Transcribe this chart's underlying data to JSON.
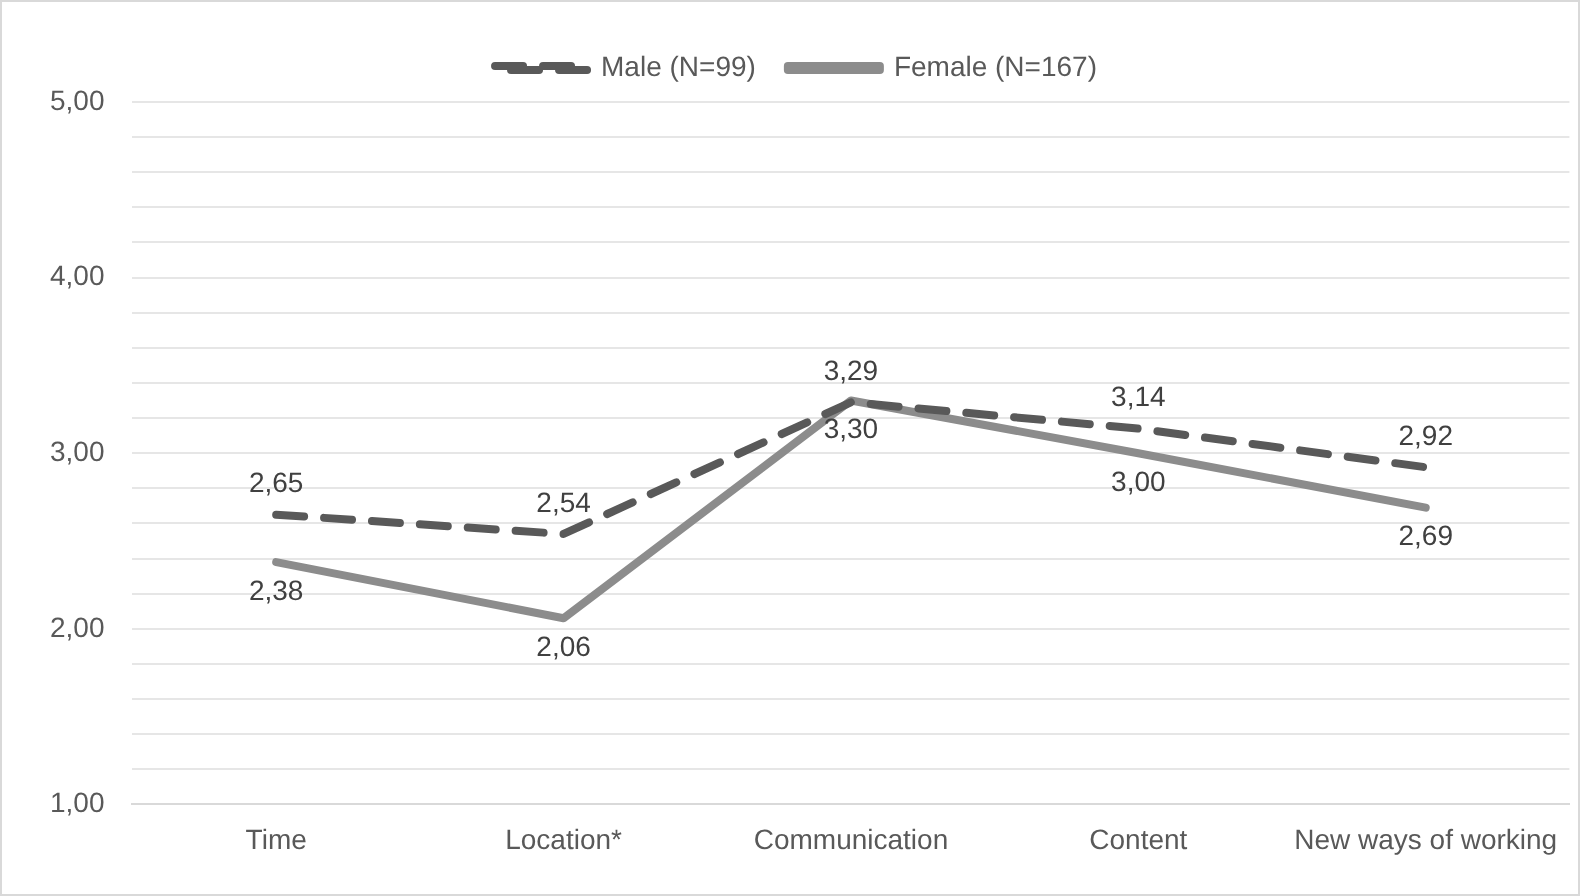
{
  "chart_data": {
    "type": "line",
    "categories": [
      "Time",
      "Location*",
      "Communication",
      "Content",
      "New ways of working"
    ],
    "series": [
      {
        "name": "Male (N=99)",
        "color": "#595959",
        "line_style": "dashed",
        "values": [
          2.65,
          2.54,
          3.29,
          3.14,
          2.92
        ],
        "value_labels": [
          "2,65",
          "2,54",
          "3,29",
          "3,14",
          "2,92"
        ]
      },
      {
        "name": "Female (N=167)",
        "color": "#8c8c8c",
        "line_style": "solid",
        "values": [
          2.38,
          2.06,
          3.3,
          3.0,
          2.69
        ],
        "value_labels": [
          "2,38",
          "2,06",
          "3,30",
          "3,00",
          "2,69"
        ]
      }
    ],
    "ylim": [
      1,
      5
    ],
    "yticks": [
      {
        "value": 1,
        "label": "1,00"
      },
      {
        "value": 1.2,
        "label": null
      },
      {
        "value": 1.4,
        "label": null
      },
      {
        "value": 1.6,
        "label": null
      },
      {
        "value": 1.8,
        "label": null
      },
      {
        "value": 2,
        "label": "2,00"
      },
      {
        "value": 2.2,
        "label": null
      },
      {
        "value": 2.4,
        "label": null
      },
      {
        "value": 2.6,
        "label": null
      },
      {
        "value": 2.8,
        "label": null
      },
      {
        "value": 3,
        "label": "3,00"
      },
      {
        "value": 3.2,
        "label": null
      },
      {
        "value": 3.4,
        "label": null
      },
      {
        "value": 3.6,
        "label": null
      },
      {
        "value": 3.8,
        "label": null
      },
      {
        "value": 4,
        "label": "4,00"
      },
      {
        "value": 4.2,
        "label": null
      },
      {
        "value": 4.4,
        "label": null
      },
      {
        "value": 4.6,
        "label": null
      },
      {
        "value": 4.8,
        "label": null
      },
      {
        "value": 5,
        "label": "5,00"
      }
    ],
    "grid": "y",
    "legend": "top",
    "marker": "none"
  }
}
